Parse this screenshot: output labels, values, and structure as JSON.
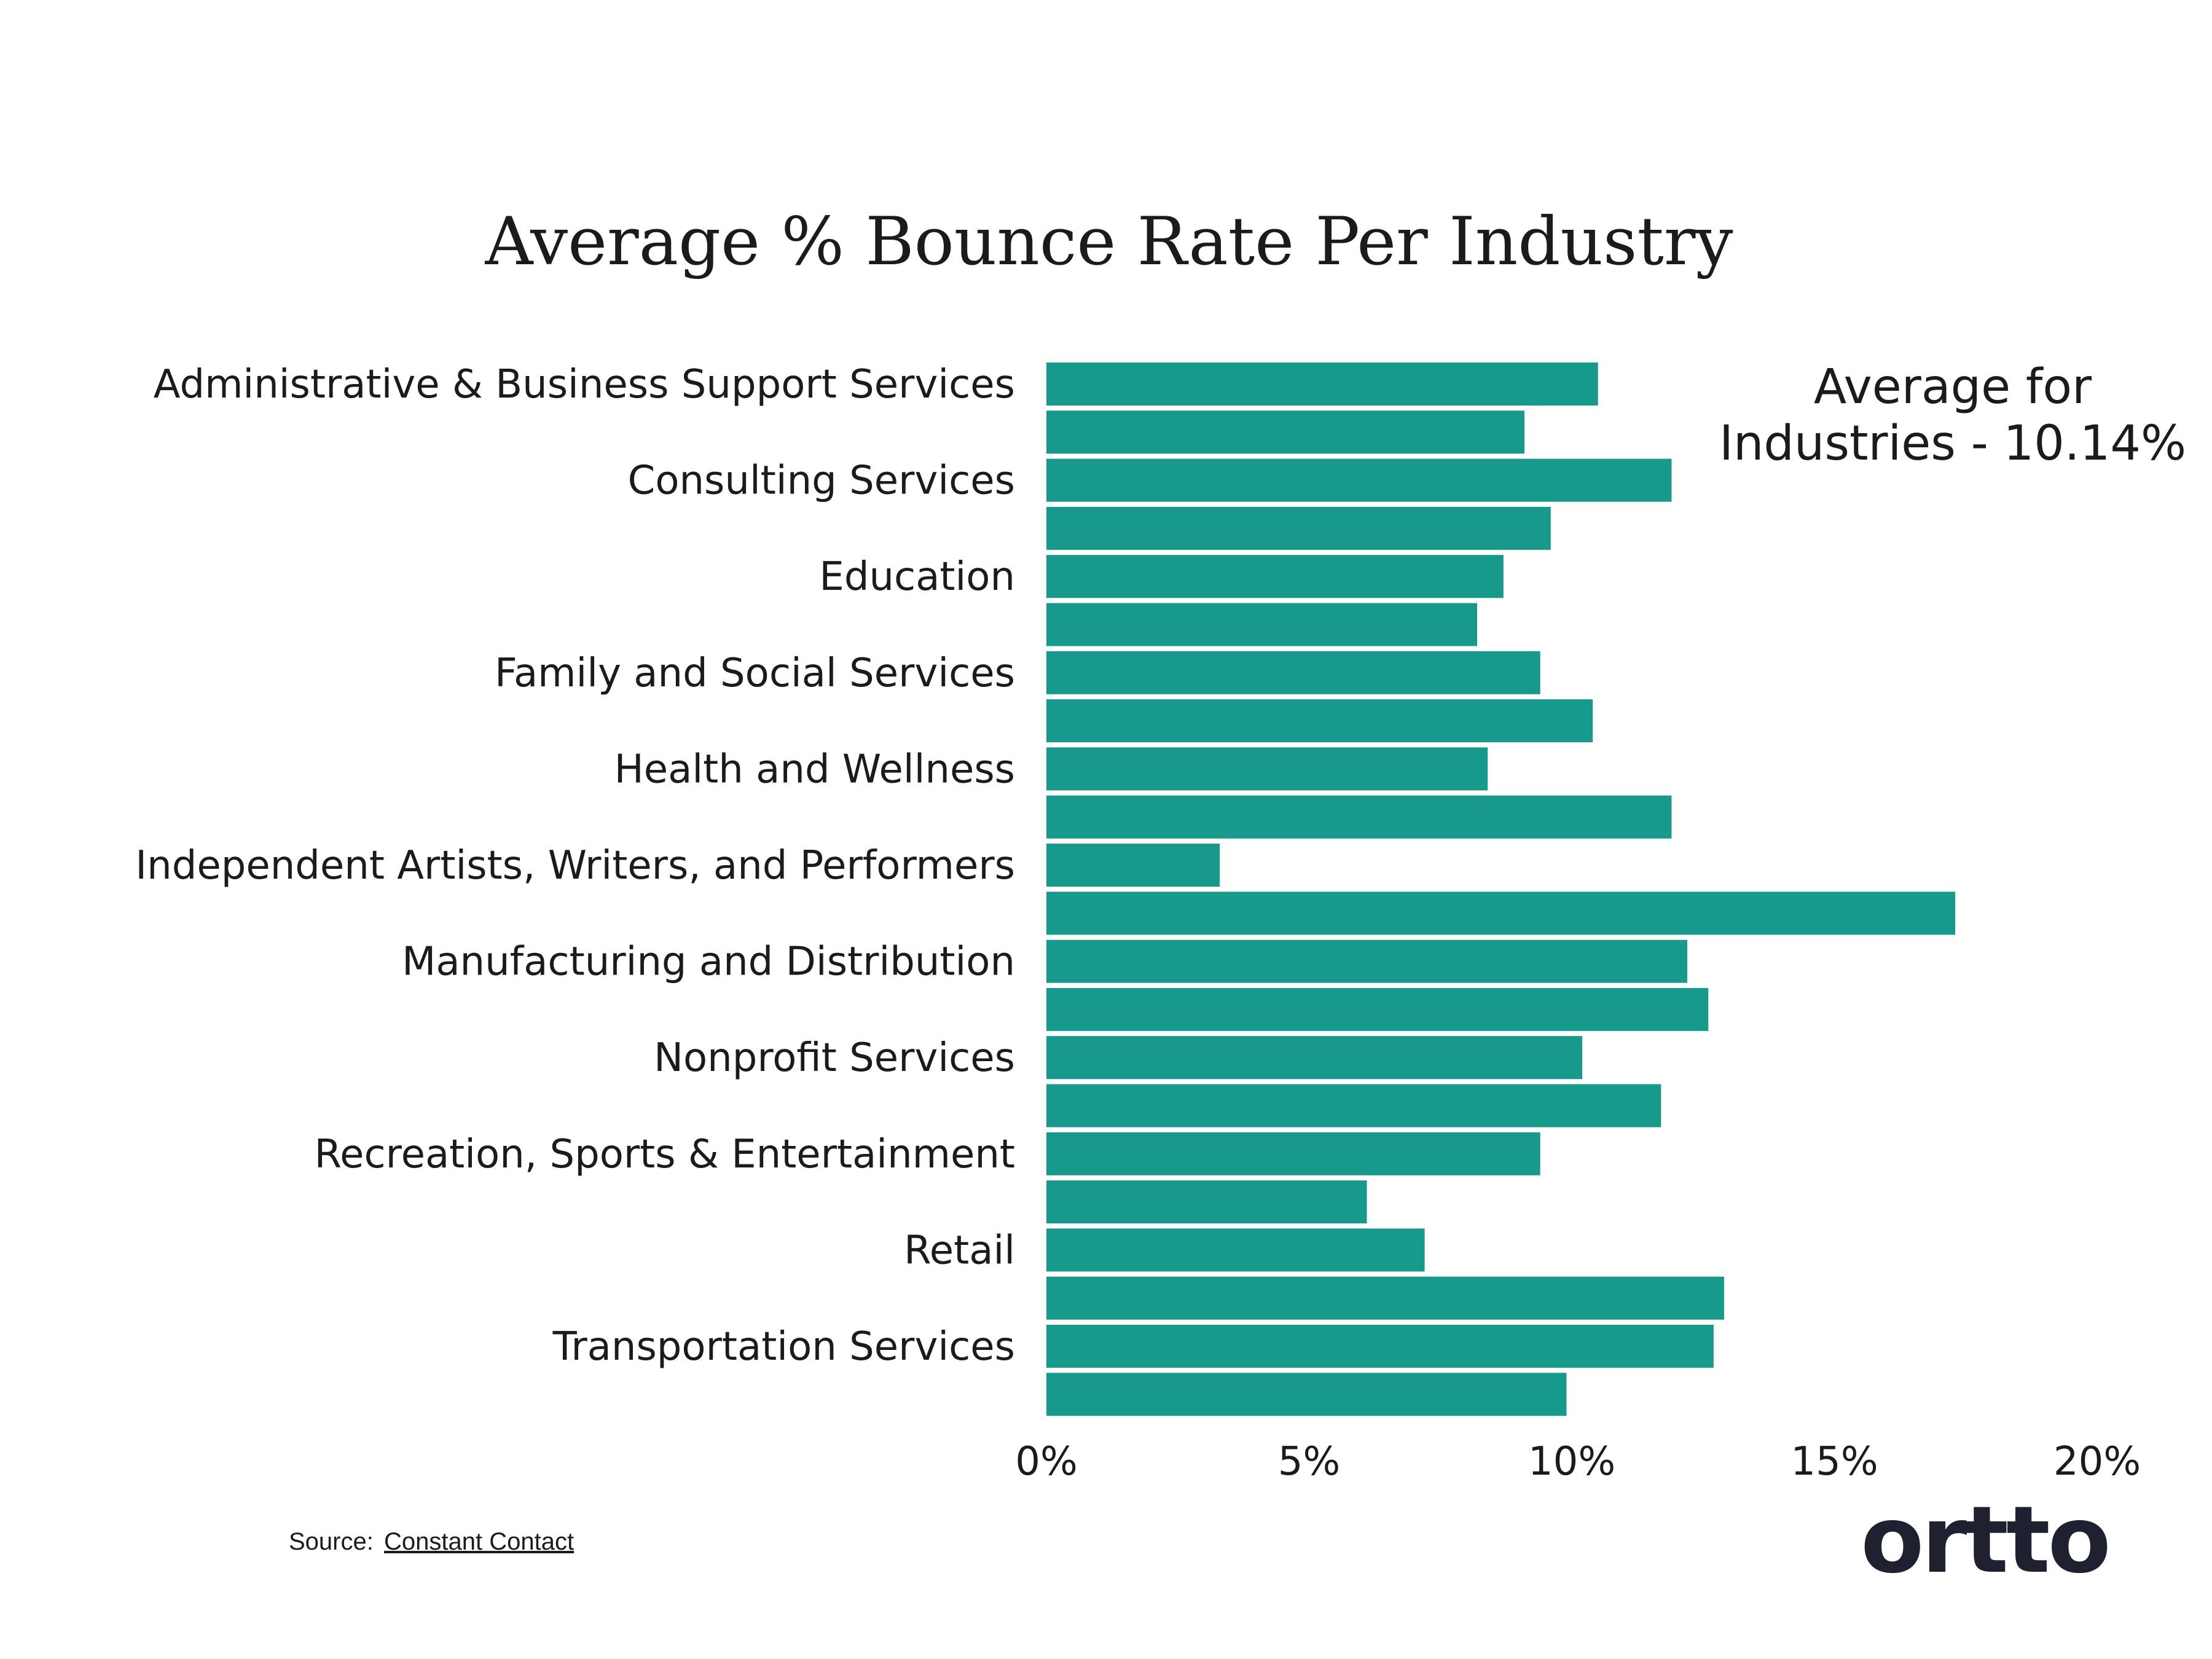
{
  "chart_data": {
    "type": "bar",
    "orientation": "horizontal",
    "title": "Average % Bounce Rate Per Industry",
    "categories": [
      "Administrative & Business Support Services",
      "",
      "Consulting Services",
      "",
      "Education",
      "",
      "Family and Social Services",
      "",
      "Health and Wellness",
      "",
      "Independent Artists, Writers, and Performers",
      "",
      "Manufacturing and Distribution",
      "",
      "Nonprofit Services",
      "",
      "Recreation, Sports & Entertainment",
      "",
      "Retail",
      "",
      "Transportation Services",
      ""
    ],
    "values": [
      10.5,
      9.1,
      11.9,
      9.6,
      8.7,
      8.2,
      9.4,
      10.4,
      8.4,
      11.9,
      3.3,
      17.3,
      12.2,
      12.6,
      10.2,
      11.7,
      9.4,
      6.1,
      7.2,
      12.9,
      12.7,
      9.9
    ],
    "xlim": [
      0,
      20
    ],
    "xticks": [
      0,
      5,
      10,
      15,
      20
    ],
    "xtick_labels": [
      "0%",
      "5%",
      "10%",
      "15%",
      "20%"
    ],
    "xlabel": "",
    "ylabel": "",
    "bar_color": "#179a8c",
    "grid": false,
    "annotation": [
      "Average for",
      "Industries - 10.14%"
    ]
  },
  "source": {
    "label": "Source:",
    "link_text": "Constant Contact"
  },
  "logo": {
    "text": "ortto",
    "color": "#1f2130"
  }
}
